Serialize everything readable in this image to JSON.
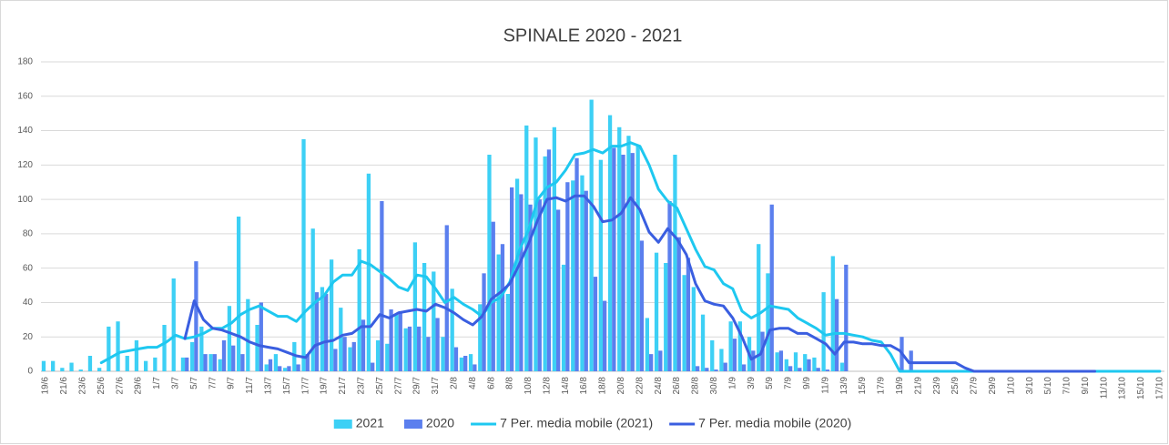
{
  "chart_data": {
    "type": "bar",
    "title": "SPINALE 2020 - 2021",
    "categories": [
      "19/6",
      null,
      "21/6",
      null,
      "23/6",
      null,
      "25/6",
      null,
      "27/6",
      null,
      "29/6",
      null,
      "1/7",
      null,
      "3/7",
      null,
      "5/7",
      null,
      "7/7",
      null,
      "9/7",
      null,
      "11/7",
      null,
      "13/7",
      null,
      "15/7",
      null,
      "17/7",
      null,
      "19/7",
      null,
      "21/7",
      null,
      "23/7",
      null,
      "25/7",
      null,
      "27/7",
      null,
      "29/7",
      null,
      "31/7",
      null,
      "2/8",
      null,
      "4/8",
      null,
      "6/8",
      null,
      "8/8",
      null,
      "10/8",
      null,
      "12/8",
      null,
      "14/8",
      null,
      "16/8",
      null,
      "18/8",
      null,
      "20/8",
      null,
      "22/8",
      null,
      "24/8",
      null,
      "26/8",
      null,
      "28/8",
      null,
      "30/8",
      null,
      "1/9",
      null,
      "3/9",
      null,
      "5/9",
      null,
      "7/9",
      null,
      "9/9",
      null,
      "11/9",
      null,
      "13/9",
      null,
      "15/9",
      null,
      "17/9",
      null,
      "19/9",
      null,
      "21/9",
      null,
      "23/9",
      null,
      "25/9",
      null,
      "27/9",
      null,
      "29/9",
      null,
      "1/10",
      null,
      "3/10",
      null,
      "5/10",
      null,
      "7/10",
      null,
      "9/10",
      null,
      "11/10",
      null,
      "13/10",
      null,
      "15/10",
      null,
      "17/10"
    ],
    "series": [
      {
        "name": "2021",
        "type": "bar",
        "color": "#3dd0f5",
        "values": [
          6,
          6,
          2,
          5,
          1,
          9,
          2,
          26,
          29,
          9,
          18,
          6,
          8,
          27,
          54,
          8,
          17,
          26,
          10,
          7,
          38,
          90,
          42,
          27,
          4,
          10,
          2,
          17,
          135,
          83,
          49,
          65,
          37,
          14,
          71,
          115,
          18,
          16,
          33,
          25,
          75,
          63,
          58,
          20,
          48,
          8,
          10,
          39,
          126,
          68,
          45,
          112,
          143,
          136,
          125,
          142,
          62,
          111,
          114,
          158,
          123,
          149,
          142,
          137,
          131,
          31,
          69,
          63,
          126,
          56,
          49,
          33,
          18,
          13,
          29,
          29,
          20,
          74,
          57,
          11,
          7,
          11,
          10,
          8,
          46,
          67,
          5,
          0,
          0,
          0,
          0,
          0,
          0,
          0,
          0,
          0,
          0,
          0,
          0,
          0,
          0,
          0,
          0,
          0,
          0,
          0,
          0,
          0,
          0,
          0,
          0,
          0,
          0,
          0,
          0,
          0,
          0,
          0,
          0,
          0,
          0
        ]
      },
      {
        "name": "2020",
        "type": "bar",
        "color": "#5b7fee",
        "values": [
          0,
          0,
          0,
          0,
          0,
          0,
          0,
          0,
          0,
          0,
          0,
          0,
          0,
          0,
          0,
          8,
          64,
          10,
          10,
          18,
          15,
          10,
          0,
          40,
          7,
          3,
          3,
          4,
          10,
          46,
          45,
          13,
          20,
          17,
          30,
          5,
          99,
          36,
          35,
          26,
          26,
          20,
          31,
          85,
          14,
          9,
          4,
          57,
          87,
          74,
          107,
          103,
          97,
          100,
          129,
          94,
          110,
          124,
          105,
          55,
          41,
          130,
          126,
          127,
          76,
          10,
          12,
          99,
          78,
          66,
          3,
          2,
          1,
          5,
          19,
          4,
          12,
          23,
          97,
          12,
          3,
          2,
          7,
          2,
          1,
          42,
          62,
          0,
          0,
          0,
          0,
          0,
          20,
          12,
          0,
          0,
          0,
          0,
          0,
          0,
          0,
          0,
          0,
          0,
          0,
          0,
          0,
          0,
          0,
          0,
          0,
          0,
          0,
          0,
          0,
          0,
          0,
          0,
          0,
          0,
          0
        ]
      },
      {
        "name": "7 Per. media mobile (2021)",
        "type": "line",
        "color": "#1ec8f0",
        "values": [
          null,
          null,
          null,
          null,
          null,
          null,
          5,
          8,
          11,
          12,
          13,
          14,
          14,
          17,
          21,
          19,
          20,
          22,
          25,
          25,
          28,
          33,
          36,
          38,
          35,
          32,
          32,
          29,
          35,
          40,
          44,
          52,
          56,
          56,
          64,
          62,
          58,
          54,
          49,
          47,
          56,
          55,
          48,
          40,
          43,
          39,
          36,
          32,
          40,
          43,
          52,
          70,
          82,
          100,
          107,
          110,
          117,
          126,
          127,
          129,
          127,
          131,
          131,
          133,
          131,
          120,
          106,
          99,
          95,
          83,
          71,
          61,
          59,
          51,
          48,
          35,
          31,
          34,
          38,
          37,
          36,
          31,
          28,
          25,
          21,
          22,
          22,
          21,
          20,
          18,
          17,
          10,
          0,
          0,
          0,
          0,
          0,
          0,
          0,
          0,
          0,
          0,
          0,
          0,
          0,
          0,
          0,
          0,
          0,
          0,
          0,
          0,
          0,
          0,
          0,
          0,
          0,
          0,
          0,
          0,
          0
        ]
      },
      {
        "name": "7 Per. media mobile (2020)",
        "type": "line",
        "color": "#3a5ee0",
        "values": [
          null,
          null,
          null,
          null,
          null,
          null,
          null,
          null,
          null,
          null,
          null,
          null,
          null,
          null,
          null,
          19,
          41,
          30,
          25,
          24,
          22,
          20,
          17,
          15,
          14,
          13,
          11,
          9,
          8,
          15,
          17,
          18,
          21,
          22,
          26,
          26,
          33,
          31,
          34,
          35,
          36,
          35,
          39,
          37,
          34,
          30,
          27,
          32,
          42,
          46,
          51,
          62,
          74,
          88,
          100,
          101,
          99,
          102,
          102,
          96,
          87,
          88,
          92,
          101,
          94,
          81,
          75,
          83,
          77,
          68,
          51,
          41,
          39,
          38,
          31,
          20,
          7,
          10,
          24,
          25,
          25,
          22,
          22,
          19,
          16,
          10,
          17,
          17,
          16,
          16,
          15,
          15,
          12,
          5,
          5,
          5,
          5,
          5,
          5,
          2,
          0,
          0,
          0,
          0,
          0,
          0,
          0,
          0,
          0,
          0,
          0,
          0,
          0,
          0,
          null,
          null,
          null,
          null,
          null,
          null,
          null
        ]
      }
    ],
    "ylim": [
      0,
      180
    ],
    "yticks": [
      0,
      20,
      40,
      60,
      80,
      100,
      120,
      140,
      160,
      180
    ],
    "grid": true
  }
}
